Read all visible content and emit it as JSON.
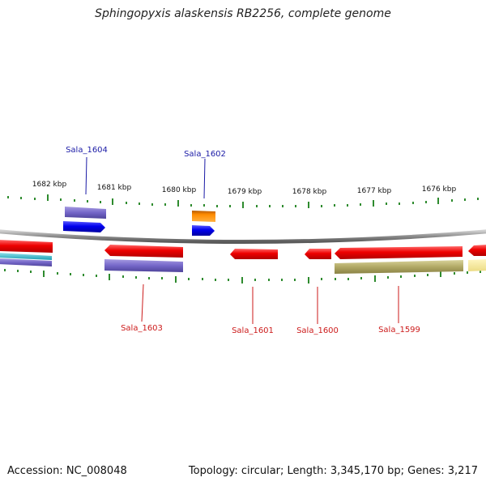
{
  "title": "Sphingopyxis alaskensis RB2256, complete genome",
  "footer": {
    "accession": "Accession: NC_008048",
    "summary": "Topology: circular; Length: 3,345,170 bp; Genes: 3,217"
  },
  "colors": {
    "backbone": "#8c8c8c",
    "ticks": "#2e8b2e",
    "label_forward": "#1a1aa6",
    "label_reverse": "#cc1a1a"
  },
  "scale": {
    "unit": "kbp",
    "labels": [
      "1682 kbp",
      "1681 kbp",
      "1680 kbp",
      "1679 kbp",
      "1678 kbp",
      "1677 kbp",
      "1676 kbp"
    ]
  },
  "gene_labels": [
    {
      "name": "Sala_1604",
      "strand": "forward"
    },
    {
      "name": "Sala_1602",
      "strand": "forward"
    },
    {
      "name": "Sala_1603",
      "strand": "reverse"
    },
    {
      "name": "Sala_1601",
      "strand": "reverse"
    },
    {
      "name": "Sala_1600",
      "strand": "reverse"
    },
    {
      "name": "Sala_1599",
      "strand": "reverse"
    }
  ]
}
